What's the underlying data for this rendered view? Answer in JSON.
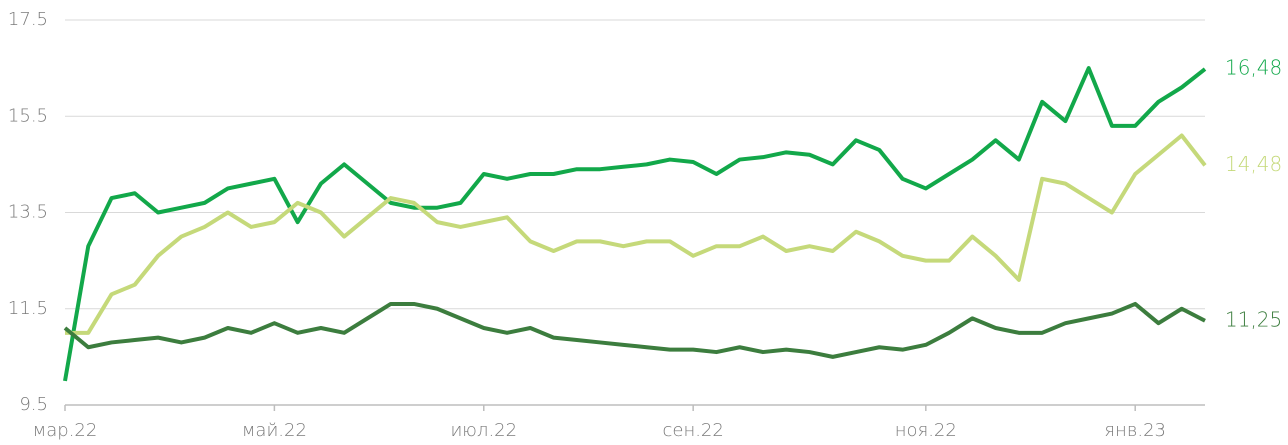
{
  "chart_data": {
    "type": "line",
    "categories": [
      "мар.22",
      null,
      null,
      null,
      null,
      null,
      null,
      null,
      null,
      "май.22",
      null,
      null,
      null,
      null,
      null,
      null,
      null,
      null,
      "июл.22",
      null,
      null,
      null,
      null,
      null,
      null,
      null,
      null,
      "сен.22",
      null,
      null,
      null,
      null,
      null,
      null,
      null,
      null,
      null,
      "ноя.22",
      null,
      null,
      null,
      null,
      null,
      null,
      null,
      null,
      "янв.23",
      null,
      null,
      null
    ],
    "ylim": [
      9.5,
      17.5
    ],
    "yticks": [
      9.5,
      11.5,
      13.5,
      15.5,
      17.5
    ],
    "grid": true,
    "series": [
      {
        "color": "#12a84a",
        "values": [
          10.0,
          12.8,
          13.8,
          13.9,
          13.5,
          13.6,
          13.7,
          14.0,
          14.1,
          14.2,
          13.3,
          14.1,
          14.5,
          14.1,
          13.7,
          13.6,
          13.6,
          13.7,
          14.3,
          14.2,
          14.3,
          14.3,
          14.4,
          14.4,
          14.45,
          14.5,
          14.6,
          14.55,
          14.3,
          14.6,
          14.65,
          14.75,
          14.7,
          14.5,
          15.0,
          14.8,
          14.2,
          14.0,
          14.3,
          14.6,
          15.0,
          14.6,
          15.8,
          15.4,
          16.5,
          15.3,
          15.3,
          15.8,
          16.1,
          16.48
        ],
        "value_labels": [
          null,
          null,
          null,
          null,
          null,
          null,
          null,
          null,
          null,
          null,
          null,
          null,
          null,
          null,
          null,
          null,
          null,
          null,
          null,
          null,
          null,
          null,
          null,
          null,
          null,
          null,
          null,
          null,
          null,
          null,
          null,
          null,
          null,
          null,
          null,
          null,
          null,
          null,
          null,
          null,
          null,
          null,
          null,
          null,
          null,
          null,
          null,
          null,
          null,
          "16,48"
        ]
      },
      {
        "color": "#c5d97a",
        "values": [
          11.0,
          11.0,
          11.8,
          12.0,
          12.6,
          13.0,
          13.2,
          13.5,
          13.2,
          13.3,
          13.7,
          13.5,
          13.0,
          13.4,
          13.8,
          13.7,
          13.3,
          13.2,
          13.3,
          13.4,
          12.9,
          12.7,
          12.9,
          12.9,
          12.8,
          12.9,
          12.9,
          12.6,
          12.8,
          12.8,
          13.0,
          12.7,
          12.8,
          12.7,
          13.1,
          12.9,
          12.6,
          12.5,
          12.5,
          13.0,
          12.6,
          12.1,
          14.2,
          14.1,
          13.8,
          13.5,
          14.3,
          14.7,
          15.1,
          14.48
        ],
        "value_labels": [
          null,
          null,
          null,
          null,
          null,
          null,
          null,
          null,
          null,
          null,
          null,
          null,
          null,
          null,
          null,
          null,
          null,
          null,
          null,
          null,
          null,
          null,
          null,
          null,
          null,
          null,
          null,
          null,
          null,
          null,
          null,
          null,
          null,
          null,
          null,
          null,
          null,
          null,
          null,
          null,
          null,
          null,
          null,
          null,
          null,
          null,
          null,
          null,
          null,
          "14,48"
        ]
      },
      {
        "color": "#3c7d3e",
        "values": [
          11.1,
          10.7,
          10.8,
          10.85,
          10.9,
          10.8,
          10.9,
          11.1,
          11.0,
          11.2,
          11.0,
          11.1,
          11.0,
          11.3,
          11.6,
          11.6,
          11.5,
          11.3,
          11.1,
          11.0,
          11.1,
          10.9,
          10.85,
          10.8,
          10.75,
          10.7,
          10.65,
          10.65,
          10.6,
          10.7,
          10.6,
          10.65,
          10.6,
          10.5,
          10.6,
          10.7,
          10.65,
          10.75,
          11.0,
          11.3,
          11.1,
          11.0,
          11.0,
          11.2,
          11.3,
          11.4,
          11.6,
          11.2,
          11.5,
          11.25
        ],
        "value_labels": [
          null,
          null,
          null,
          null,
          null,
          null,
          null,
          null,
          null,
          null,
          null,
          null,
          null,
          null,
          null,
          null,
          null,
          null,
          null,
          null,
          null,
          null,
          null,
          null,
          null,
          null,
          null,
          null,
          null,
          null,
          null,
          null,
          null,
          null,
          null,
          null,
          null,
          null,
          null,
          null,
          null,
          null,
          null,
          null,
          null,
          null,
          null,
          null,
          null,
          "11,25"
        ]
      }
    ]
  }
}
